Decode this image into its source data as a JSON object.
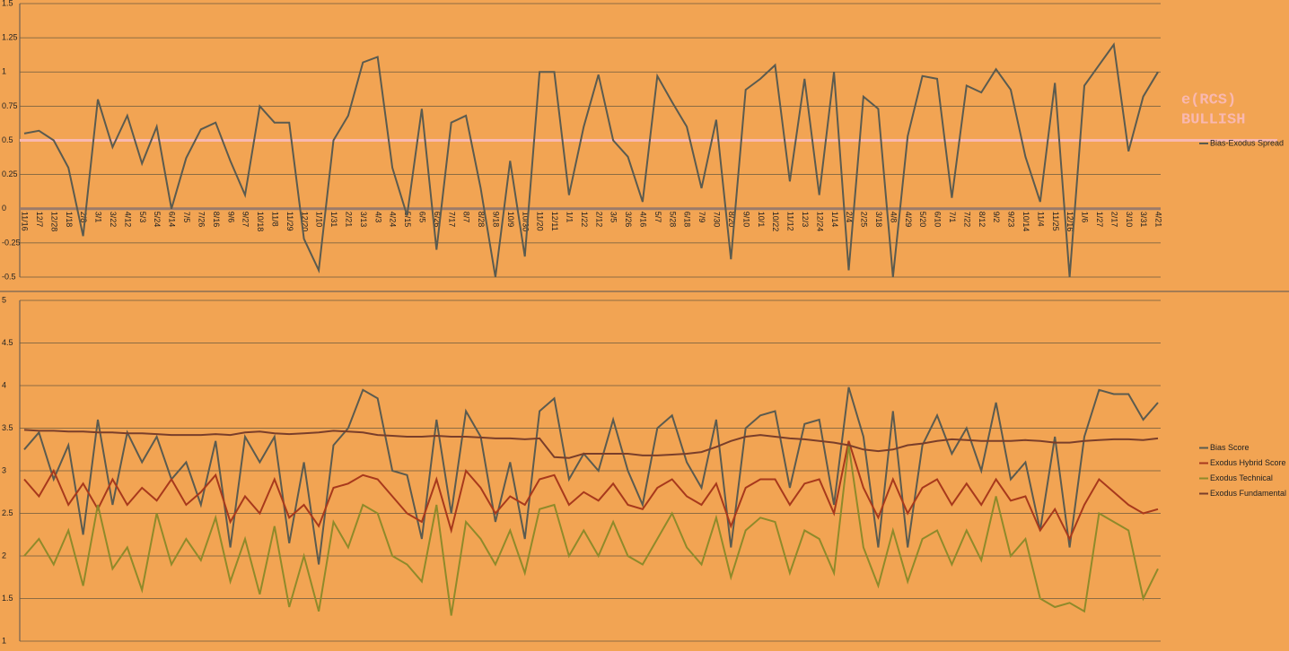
{
  "chart_data": [
    {
      "type": "line",
      "categories": [
        "11/16",
        "12/7",
        "12/28",
        "1/18",
        "2/8",
        "3/1",
        "3/22",
        "4/12",
        "5/3",
        "5/24",
        "6/14",
        "7/5",
        "7/26",
        "8/16",
        "9/6",
        "9/27",
        "10/18",
        "11/8",
        "11/29",
        "12/20",
        "1/10",
        "1/31",
        "2/21",
        "3/13",
        "4/3",
        "4/24",
        "5/15",
        "6/5",
        "6/26",
        "7/17",
        "8/7",
        "8/28",
        "9/18",
        "10/9",
        "10/30",
        "11/20",
        "12/11",
        "1/1",
        "1/22",
        "2/12",
        "3/5",
        "3/26",
        "4/16",
        "5/7",
        "5/28",
        "6/18",
        "7/9",
        "7/30",
        "8/20",
        "9/10",
        "10/1",
        "10/22",
        "11/12",
        "12/3",
        "12/24",
        "1/14",
        "2/4",
        "2/25",
        "3/18",
        "4/8",
        "4/29",
        "5/20",
        "6/10",
        "7/1",
        "7/22",
        "8/12",
        "9/2",
        "9/23",
        "10/14",
        "11/4",
        "11/25",
        "12/16",
        "1/6",
        "1/27",
        "2/17",
        "3/10",
        "3/31",
        "4/21"
      ],
      "series": [
        {
          "name": "Bias-Exodus Spread",
          "color": "#5b5b4f",
          "values": [
            0.55,
            0.57,
            0.5,
            0.3,
            -0.2,
            0.8,
            0.45,
            0.68,
            0.33,
            0.6,
            0.0,
            0.37,
            0.58,
            0.63,
            0.35,
            0.1,
            0.75,
            0.63,
            0.63,
            -0.22,
            -0.45,
            0.5,
            0.68,
            1.07,
            1.11,
            0.3,
            -0.05,
            0.73,
            -0.3,
            0.63,
            0.68,
            0.15,
            -0.5,
            0.35,
            -0.35,
            1.0,
            1.0,
            0.1,
            0.6,
            0.98,
            0.5,
            0.38,
            0.05,
            0.97,
            0.78,
            0.6,
            0.15,
            0.65,
            -0.37,
            0.87,
            0.95,
            1.05,
            0.2,
            0.95,
            0.1,
            1.0,
            -0.45,
            0.82,
            0.73,
            -0.5,
            0.53,
            0.97,
            0.95,
            0.08,
            0.9,
            0.85,
            1.02,
            0.87,
            0.38,
            0.05,
            0.92,
            -0.5,
            0.9,
            1.05,
            1.2,
            0.42,
            0.82,
            1.0
          ]
        }
      ],
      "ylim": [
        -0.5,
        1.5
      ],
      "yticks": [
        -0.5,
        -0.25,
        0,
        0.25,
        0.5,
        0.75,
        1,
        1.25,
        1.5
      ],
      "grid": true,
      "legend": "right",
      "reference_line": {
        "value": 0.5,
        "color": "#f9b8b0"
      },
      "annotation": [
        "e(RCS)",
        "BULLISH"
      ]
    },
    {
      "type": "line",
      "series": [
        {
          "name": "Bias Score",
          "color": "#5b5b4f",
          "values": [
            3.25,
            3.45,
            2.9,
            3.3,
            2.25,
            3.6,
            2.6,
            3.45,
            3.1,
            3.4,
            2.9,
            3.1,
            2.6,
            3.35,
            2.1,
            3.4,
            3.1,
            3.4,
            2.15,
            3.1,
            1.9,
            3.3,
            3.5,
            3.95,
            3.85,
            3.0,
            2.95,
            2.2,
            3.6,
            2.5,
            3.7,
            3.4,
            2.4,
            3.1,
            2.2,
            3.7,
            3.85,
            2.9,
            3.2,
            3.0,
            3.6,
            3.0,
            2.6,
            3.5,
            3.65,
            3.1,
            2.8,
            3.6,
            2.1,
            3.5,
            3.65,
            3.7,
            2.8,
            3.55,
            3.6,
            2.6,
            3.98,
            3.4,
            2.1,
            3.7,
            2.1,
            3.3,
            3.65,
            3.2,
            3.5,
            3.0,
            3.8,
            2.9,
            3.1,
            2.3,
            3.4,
            2.1,
            3.4,
            3.95,
            3.9,
            3.9,
            3.6,
            3.8
          ]
        },
        {
          "name": "Exodus Hybrid Score",
          "color": "#a8391c",
          "values": [
            2.9,
            2.7,
            3.0,
            2.6,
            2.85,
            2.55,
            2.9,
            2.6,
            2.8,
            2.65,
            2.9,
            2.6,
            2.75,
            2.95,
            2.4,
            2.7,
            2.5,
            2.9,
            2.45,
            2.6,
            2.35,
            2.8,
            2.85,
            2.95,
            2.9,
            2.7,
            2.5,
            2.4,
            2.9,
            2.3,
            3.0,
            2.8,
            2.5,
            2.7,
            2.6,
            2.9,
            2.95,
            2.6,
            2.75,
            2.65,
            2.85,
            2.6,
            2.55,
            2.8,
            2.9,
            2.7,
            2.6,
            2.85,
            2.35,
            2.8,
            2.9,
            2.9,
            2.6,
            2.85,
            2.9,
            2.5,
            3.35,
            2.8,
            2.45,
            2.9,
            2.5,
            2.8,
            2.9,
            2.6,
            2.85,
            2.6,
            2.9,
            2.65,
            2.7,
            2.3,
            2.55,
            2.2,
            2.6,
            2.9,
            2.75,
            2.6,
            2.5,
            2.55
          ]
        },
        {
          "name": "Exodus Technical",
          "color": "#8f8a2a",
          "values": [
            2.0,
            2.2,
            1.9,
            2.3,
            1.65,
            2.6,
            1.85,
            2.1,
            1.6,
            2.5,
            1.9,
            2.2,
            1.95,
            2.45,
            1.7,
            2.2,
            1.55,
            2.35,
            1.4,
            2.0,
            1.35,
            2.4,
            2.1,
            2.6,
            2.5,
            2.0,
            1.9,
            1.7,
            2.6,
            1.3,
            2.4,
            2.2,
            1.9,
            2.3,
            1.8,
            2.55,
            2.6,
            2.0,
            2.3,
            2.0,
            2.4,
            2.0,
            1.9,
            2.2,
            2.5,
            2.1,
            1.9,
            2.45,
            1.75,
            2.3,
            2.45,
            2.4,
            1.8,
            2.3,
            2.2,
            1.8,
            3.3,
            2.1,
            1.65,
            2.3,
            1.7,
            2.2,
            2.3,
            1.9,
            2.3,
            1.95,
            2.7,
            2.0,
            2.2,
            1.5,
            1.4,
            1.45,
            1.35,
            2.5,
            2.4,
            2.3,
            1.5,
            1.85
          ]
        },
        {
          "name": "Exodus Fundamental",
          "color": "#7a3e2a",
          "values": [
            3.48,
            3.47,
            3.47,
            3.46,
            3.46,
            3.45,
            3.45,
            3.44,
            3.44,
            3.43,
            3.42,
            3.42,
            3.42,
            3.43,
            3.42,
            3.45,
            3.46,
            3.44,
            3.43,
            3.44,
            3.45,
            3.47,
            3.46,
            3.45,
            3.42,
            3.41,
            3.4,
            3.4,
            3.41,
            3.4,
            3.4,
            3.39,
            3.38,
            3.38,
            3.37,
            3.38,
            3.16,
            3.15,
            3.2,
            3.2,
            3.2,
            3.2,
            3.18,
            3.18,
            3.19,
            3.2,
            3.22,
            3.28,
            3.35,
            3.4,
            3.42,
            3.4,
            3.38,
            3.37,
            3.35,
            3.33,
            3.3,
            3.25,
            3.23,
            3.25,
            3.3,
            3.32,
            3.35,
            3.37,
            3.36,
            3.35,
            3.35,
            3.35,
            3.36,
            3.35,
            3.33,
            3.33,
            3.35,
            3.36,
            3.37,
            3.37,
            3.36,
            3.38
          ]
        }
      ],
      "ylim": [
        1,
        5
      ],
      "yticks": [
        1,
        1.5,
        2,
        2.5,
        3,
        3.5,
        4,
        4.5,
        5
      ],
      "grid": true,
      "legend": "right"
    }
  ]
}
